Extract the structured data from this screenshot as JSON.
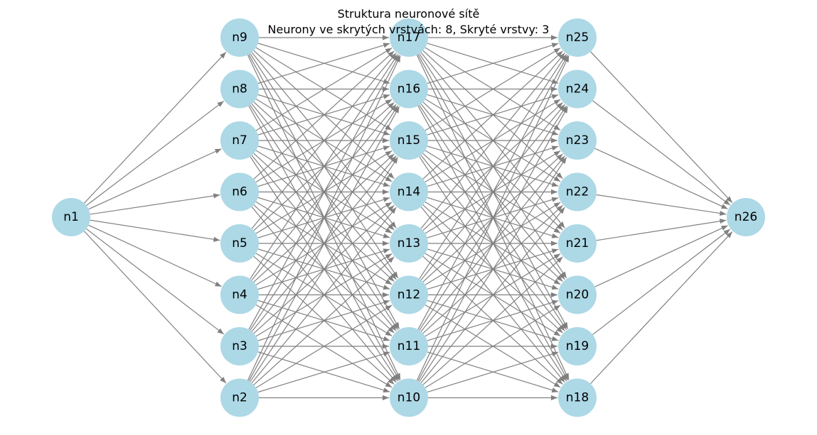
{
  "title": {
    "line1": "Struktura neuronové sítě",
    "line2": "Neurony ve skrytých vrstvách: 8, Skryté vrstvy: 3"
  },
  "colors": {
    "node_fill": "#add8e6",
    "edge": "#808080",
    "label": "#000000"
  },
  "layers": [
    [
      "n1"
    ],
    [
      "n9",
      "n8",
      "n7",
      "n6",
      "n5",
      "n4",
      "n3",
      "n2"
    ],
    [
      "n17",
      "n16",
      "n15",
      "n14",
      "n13",
      "n12",
      "n11",
      "n10"
    ],
    [
      "n25",
      "n24",
      "n23",
      "n22",
      "n21",
      "n20",
      "n19",
      "n18"
    ],
    [
      "n26"
    ]
  ]
}
